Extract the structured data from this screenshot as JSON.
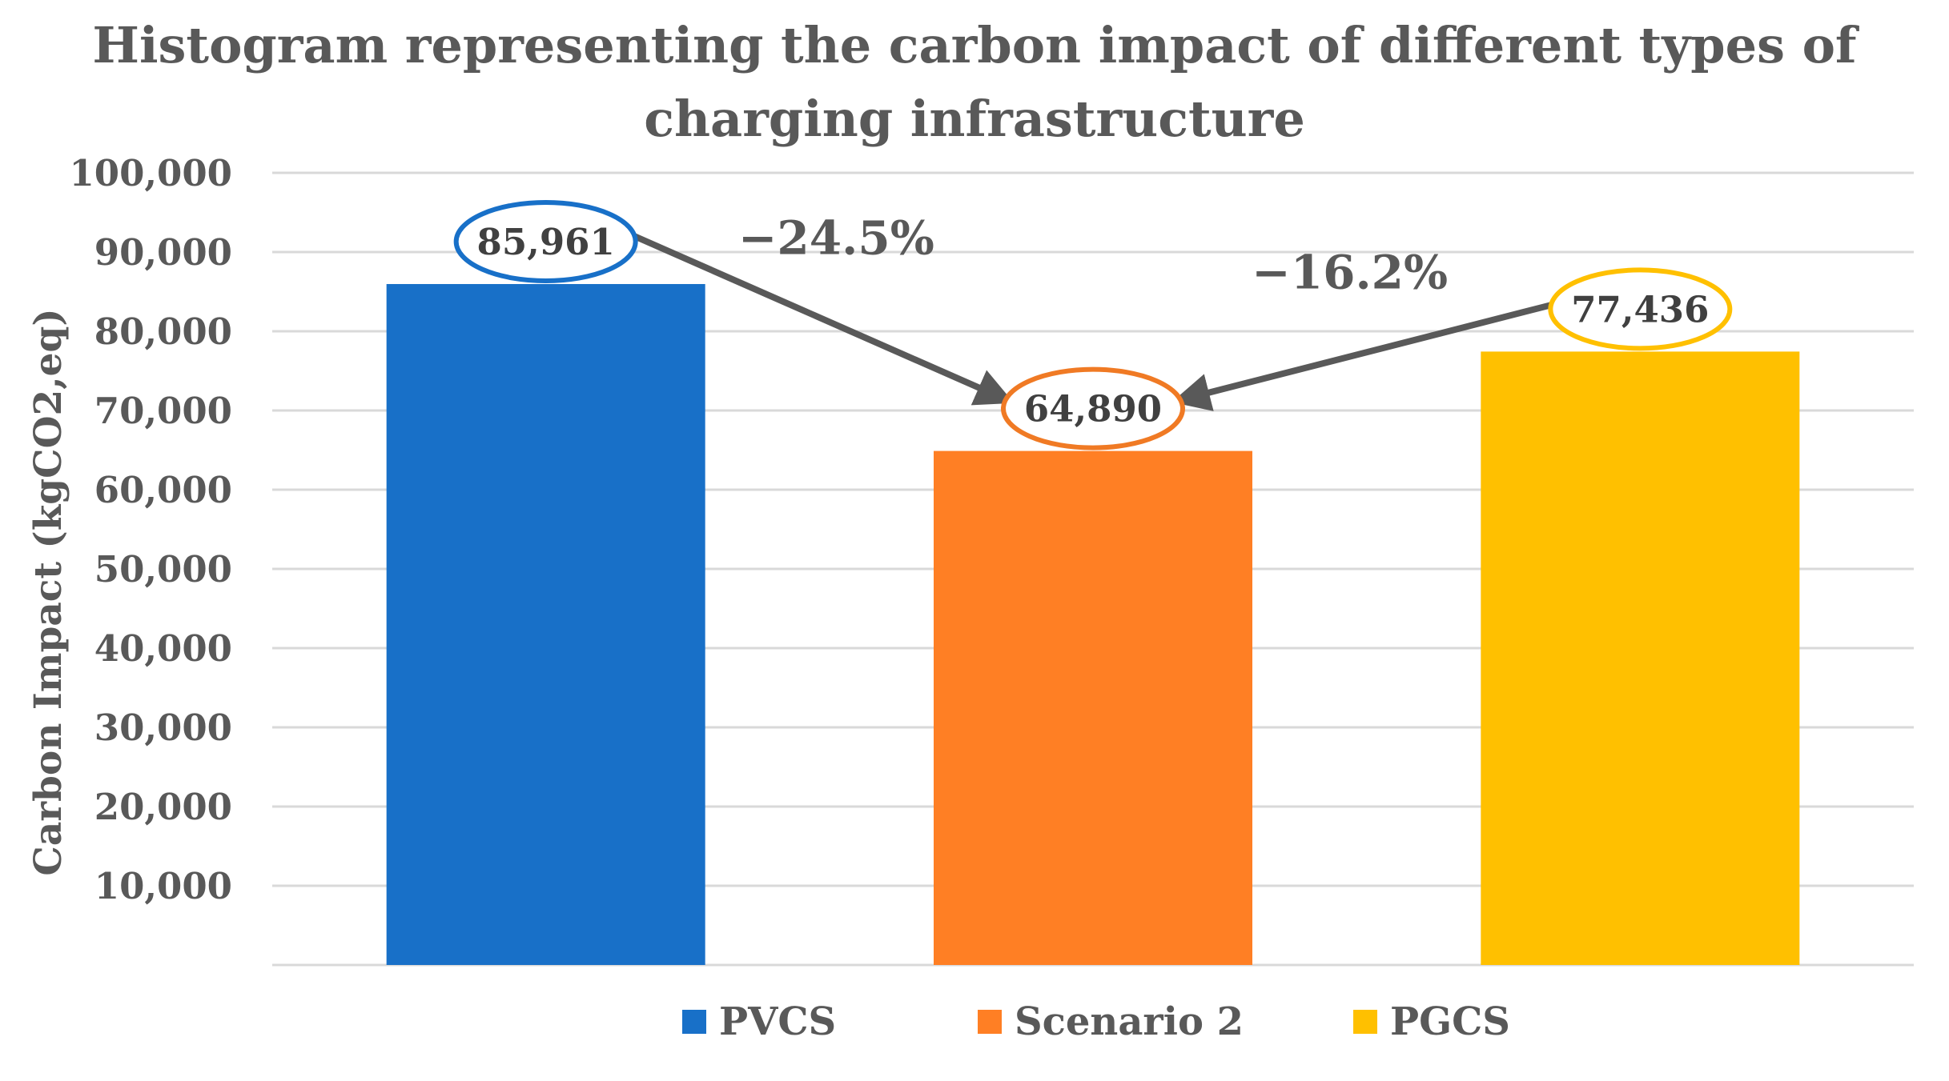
{
  "chart_data": {
    "type": "bar",
    "title_lines": [
      "Histogram representing the carbon impact of different types of",
      "charging infrastructure"
    ],
    "ylabel": "Carbon Impact (kgCO2,eq)",
    "xlabel": "",
    "ylim": [
      0,
      100000
    ],
    "ytick_values": [
      10000,
      20000,
      30000,
      40000,
      50000,
      60000,
      70000,
      80000,
      90000,
      100000
    ],
    "ytick_labels": [
      "10,000",
      "20,000",
      "30,000",
      "40,000",
      "50,000",
      "60,000",
      "70,000",
      "80,000",
      "90,000",
      "100,000"
    ],
    "grid": true,
    "legend_position": "bottom",
    "series": [
      {
        "name": "PVCS",
        "value": 85961,
        "label": "85,961",
        "color": "#1870C8",
        "ring_color": "#1870C8"
      },
      {
        "name": "Scenario 2",
        "value": 64890,
        "label": "64,890",
        "color": "#FF7F24",
        "ring_color": "#F07A24"
      },
      {
        "name": "PGCS",
        "value": 77436,
        "label": "77,436",
        "color": "#FFC000",
        "ring_color": "#FFC000"
      }
    ],
    "annotations": [
      {
        "text": "−24.5%",
        "from": "PVCS",
        "to": "Scenario 2"
      },
      {
        "text": "−16.2%",
        "from": "PGCS",
        "to": "Scenario 2"
      }
    ],
    "arrow_color": "#595959"
  }
}
